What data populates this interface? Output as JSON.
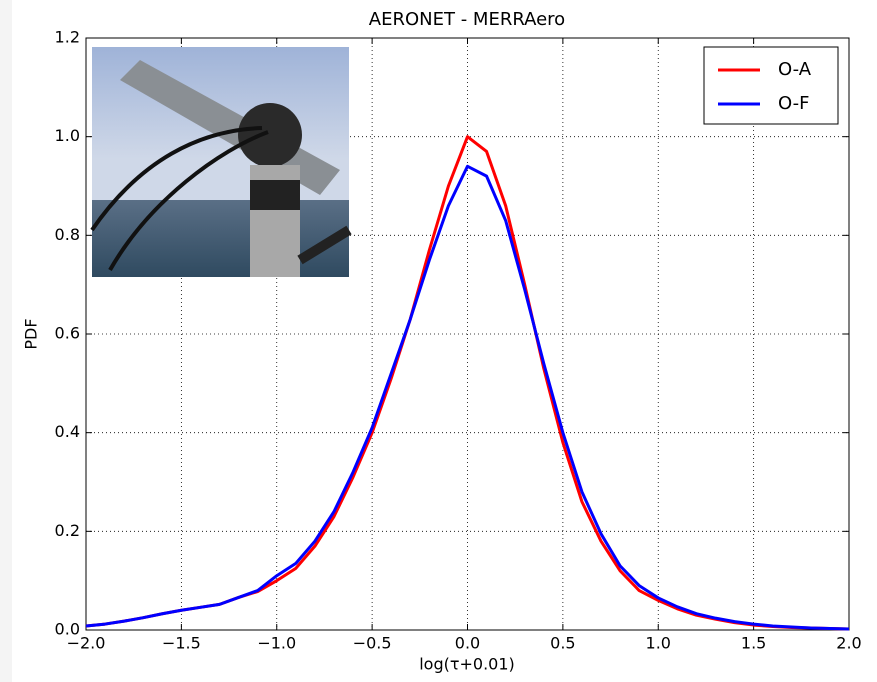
{
  "chart_data": {
    "type": "line",
    "title": "AERONET - MERRAero",
    "xlabel": "log(τ+0.01)",
    "ylabel": "PDF",
    "x": [
      -2.0,
      -1.9,
      -1.8,
      -1.7,
      -1.6,
      -1.5,
      -1.4,
      -1.3,
      -1.2,
      -1.1,
      -1.0,
      -0.9,
      -0.8,
      -0.7,
      -0.6,
      -0.5,
      -0.4,
      -0.3,
      -0.2,
      -0.1,
      0.0,
      0.1,
      0.2,
      0.3,
      0.4,
      0.5,
      0.6,
      0.7,
      0.8,
      0.9,
      1.0,
      1.1,
      1.2,
      1.3,
      1.4,
      1.5,
      1.6,
      1.7,
      1.8,
      1.9,
      2.0
    ],
    "series": [
      {
        "name": "O-A",
        "color": "#ff0000",
        "values": [
          0.008,
          0.012,
          0.018,
          0.025,
          0.033,
          0.04,
          0.046,
          0.052,
          0.066,
          0.078,
          0.1,
          0.125,
          0.17,
          0.23,
          0.31,
          0.4,
          0.51,
          0.63,
          0.77,
          0.9,
          1.0,
          0.97,
          0.86,
          0.7,
          0.53,
          0.38,
          0.26,
          0.18,
          0.12,
          0.08,
          0.06,
          0.043,
          0.03,
          0.022,
          0.015,
          0.01,
          0.007,
          0.005,
          0.004,
          0.003,
          0.002
        ]
      },
      {
        "name": "O-F",
        "color": "#0000ff",
        "values": [
          0.008,
          0.012,
          0.018,
          0.025,
          0.033,
          0.04,
          0.046,
          0.052,
          0.066,
          0.08,
          0.11,
          0.135,
          0.18,
          0.24,
          0.32,
          0.41,
          0.52,
          0.63,
          0.75,
          0.86,
          0.94,
          0.92,
          0.83,
          0.69,
          0.54,
          0.4,
          0.28,
          0.195,
          0.13,
          0.09,
          0.065,
          0.047,
          0.033,
          0.024,
          0.017,
          0.012,
          0.008,
          0.006,
          0.004,
          0.003,
          0.002
        ]
      }
    ],
    "xlim": [
      -2.0,
      2.0
    ],
    "xticks": [
      {
        "value": -2.0,
        "label": "−2.0"
      },
      {
        "value": -1.5,
        "label": "−1.5"
      },
      {
        "value": -1.0,
        "label": "−1.0"
      },
      {
        "value": -0.5,
        "label": "−0.5"
      },
      {
        "value": 0,
        "label": "0.0"
      },
      0.5,
      {
        "value": 1,
        "label": "1.0"
      },
      1.5,
      {
        "value": 2,
        "label": "2.0"
      }
    ],
    "ylim": [
      0,
      1.2
    ],
    "yticks": [
      {
        "value": 0,
        "label": "0.0"
      },
      0.2,
      0.4,
      0.6,
      0.8,
      {
        "value": 1,
        "label": "1.0"
      },
      1.2
    ],
    "grid": true,
    "legend": "upper right"
  }
}
